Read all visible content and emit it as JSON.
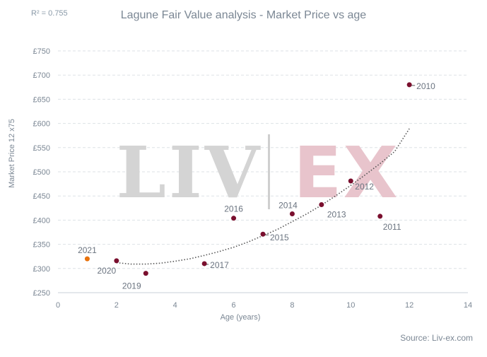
{
  "chart_data": {
    "type": "scatter",
    "title": "Lagune Fair Value analysis - Market Price vs age",
    "annotation": "R² = 0.755",
    "source": "Source: Liv-ex.com",
    "watermark": {
      "left": "LIV",
      "right": "EX"
    },
    "xlabel": "Age (years)",
    "ylabel": "Market Price 12 x75",
    "xlim": [
      0,
      14
    ],
    "ylim": [
      250,
      750
    ],
    "xticks": [
      0,
      2,
      4,
      6,
      8,
      10,
      12,
      14
    ],
    "yticks": [
      250,
      300,
      350,
      400,
      450,
      500,
      550,
      600,
      650,
      700,
      750
    ],
    "ytick_labels": [
      "£250",
      "£300",
      "£350",
      "£400",
      "£450",
      "£500",
      "£550",
      "£600",
      "£650",
      "£700",
      "£750"
    ],
    "grid": "horizontal-dashed",
    "points": [
      {
        "label": "2021",
        "x": 1,
        "y": 320,
        "highlight": true
      },
      {
        "label": "2020",
        "x": 2,
        "y": 316
      },
      {
        "label": "2019",
        "x": 3,
        "y": 290
      },
      {
        "label": "2017",
        "x": 5,
        "y": 310
      },
      {
        "label": "2016",
        "x": 6,
        "y": 404
      },
      {
        "label": "2015",
        "x": 7,
        "y": 371
      },
      {
        "label": "2014",
        "x": 8,
        "y": 413
      },
      {
        "label": "2013",
        "x": 9,
        "y": 432
      },
      {
        "label": "2012",
        "x": 10,
        "y": 481
      },
      {
        "label": "2011",
        "x": 11,
        "y": 408
      },
      {
        "label": "2010",
        "x": 12,
        "y": 680
      }
    ],
    "trendline": {
      "style": "dotted",
      "x": [
        2,
        2.5,
        3,
        3.5,
        4,
        4.5,
        5,
        5.5,
        6,
        6.5,
        7,
        7.5,
        8,
        8.5,
        9,
        9.5,
        10,
        10.5,
        11,
        11.5,
        12
      ],
      "y": [
        312,
        309,
        309,
        311,
        315,
        320,
        327,
        335,
        344,
        355,
        368,
        381,
        397,
        413,
        431,
        451,
        472,
        494,
        517,
        542,
        589
      ]
    },
    "colors": {
      "point": "#7a0f2e",
      "highlight": "#e8720c",
      "watermark_left": "#d4d4d4",
      "watermark_right": "#e8c4cc"
    }
  }
}
